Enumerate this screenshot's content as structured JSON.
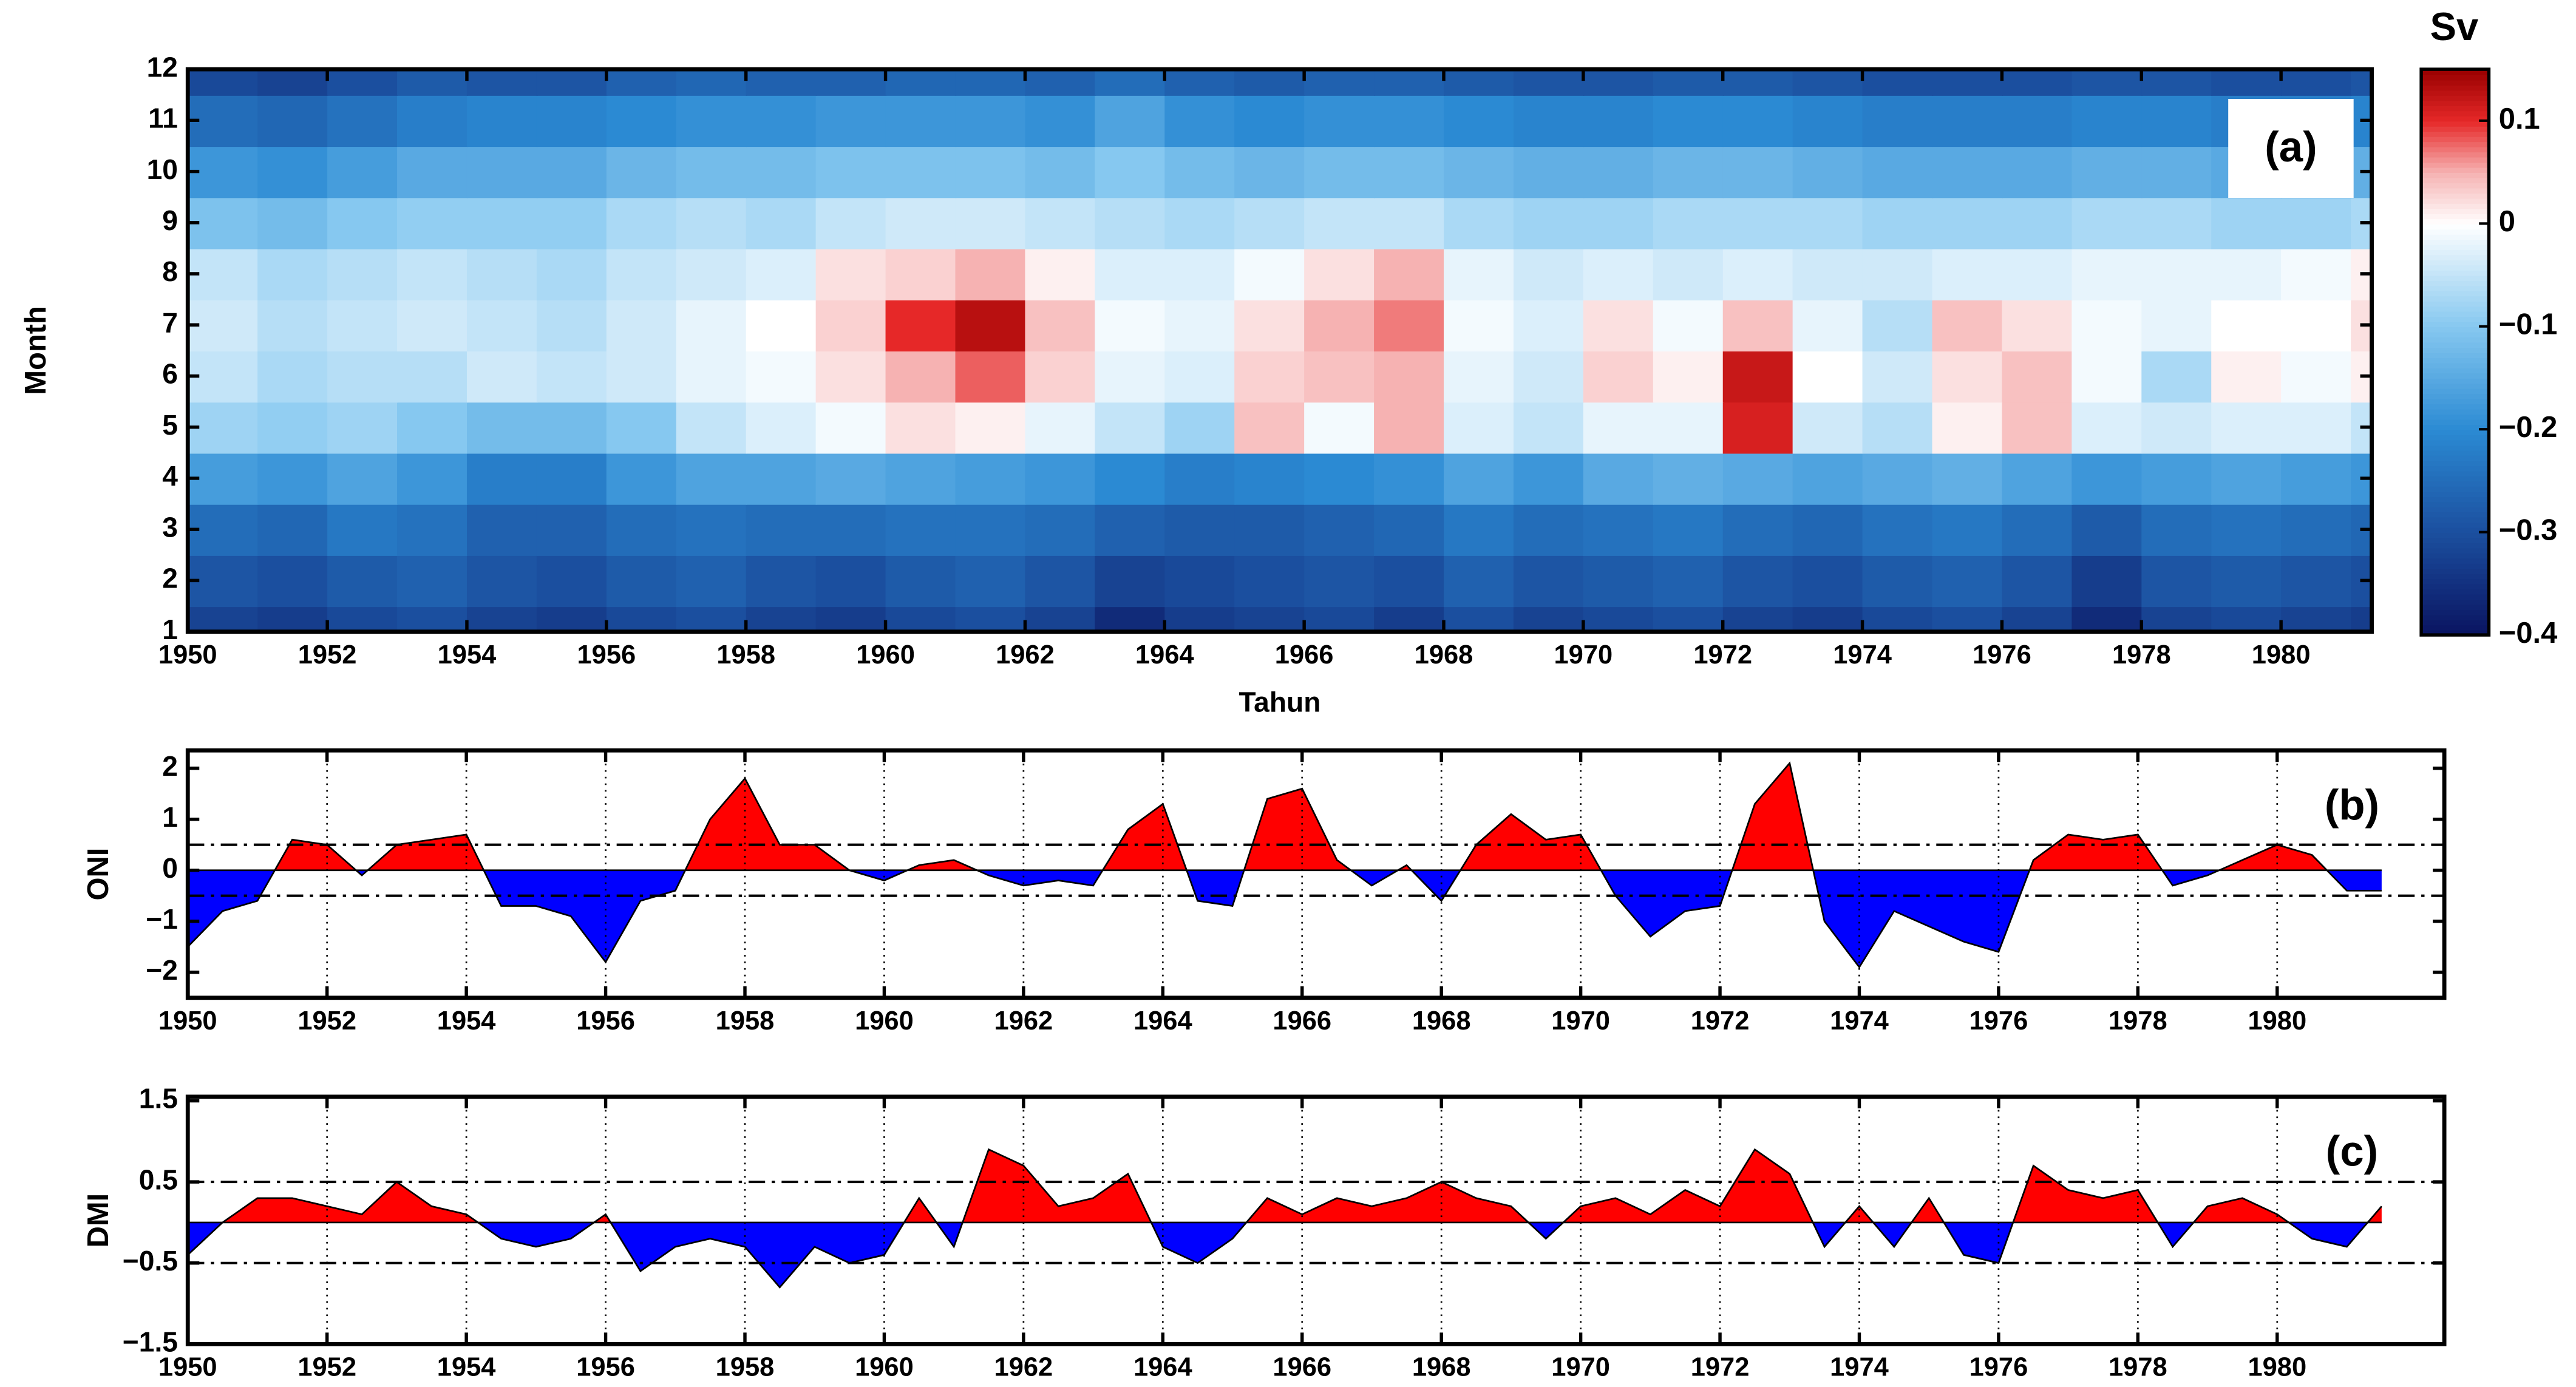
{
  "chart_data": [
    {
      "type": "heatmap",
      "xlabel": "Tahun",
      "ylabel": "Month",
      "annotation": "(a)",
      "x": [
        1950,
        1951,
        1952,
        1953,
        1954,
        1955,
        1956,
        1957,
        1958,
        1959,
        1960,
        1961,
        1962,
        1963,
        1964,
        1965,
        1966,
        1967,
        1968,
        1969,
        1970,
        1971,
        1972,
        1973,
        1974,
        1975,
        1976,
        1977,
        1978,
        1979,
        1980,
        1981
      ],
      "y": [
        1,
        2,
        3,
        4,
        5,
        6,
        7,
        8,
        9,
        10,
        11,
        12
      ],
      "z": [
        [
          -0.32,
          -0.33,
          -0.31,
          -0.3,
          -0.32,
          -0.33,
          -0.31,
          -0.3,
          -0.32,
          -0.33,
          -0.31,
          -0.3,
          -0.32,
          -0.36,
          -0.33,
          -0.32,
          -0.31,
          -0.33,
          -0.3,
          -0.32,
          -0.31,
          -0.3,
          -0.32,
          -0.33,
          -0.31,
          -0.3,
          -0.32,
          -0.36,
          -0.32,
          -0.31,
          -0.32,
          -0.33
        ],
        [
          -0.29,
          -0.3,
          -0.28,
          -0.27,
          -0.29,
          -0.3,
          -0.28,
          -0.27,
          -0.29,
          -0.3,
          -0.28,
          -0.27,
          -0.29,
          -0.32,
          -0.31,
          -0.3,
          -0.29,
          -0.3,
          -0.27,
          -0.29,
          -0.28,
          -0.27,
          -0.29,
          -0.3,
          -0.28,
          -0.27,
          -0.29,
          -0.33,
          -0.29,
          -0.28,
          -0.29,
          -0.3
        ],
        [
          -0.25,
          -0.26,
          -0.23,
          -0.24,
          -0.27,
          -0.27,
          -0.25,
          -0.24,
          -0.25,
          -0.25,
          -0.24,
          -0.24,
          -0.25,
          -0.27,
          -0.28,
          -0.28,
          -0.27,
          -0.26,
          -0.23,
          -0.25,
          -0.24,
          -0.23,
          -0.25,
          -0.26,
          -0.24,
          -0.23,
          -0.25,
          -0.28,
          -0.25,
          -0.24,
          -0.25,
          -0.26
        ],
        [
          -0.17,
          -0.18,
          -0.16,
          -0.18,
          -0.22,
          -0.22,
          -0.18,
          -0.16,
          -0.16,
          -0.15,
          -0.16,
          -0.17,
          -0.18,
          -0.2,
          -0.22,
          -0.21,
          -0.2,
          -0.19,
          -0.16,
          -0.18,
          -0.15,
          -0.14,
          -0.15,
          -0.16,
          -0.15,
          -0.14,
          -0.16,
          -0.18,
          -0.17,
          -0.16,
          -0.17,
          -0.18
        ],
        [
          -0.08,
          -0.09,
          -0.08,
          -0.1,
          -0.12,
          -0.12,
          -0.1,
          -0.05,
          -0.03,
          -0.01,
          0.02,
          0.01,
          -0.02,
          -0.05,
          -0.08,
          0.04,
          -0.01,
          0.05,
          -0.03,
          -0.05,
          -0.02,
          -0.02,
          0.11,
          -0.04,
          -0.06,
          0.01,
          0.04,
          -0.03,
          -0.04,
          -0.03,
          -0.03,
          -0.05
        ],
        [
          -0.05,
          -0.07,
          -0.06,
          -0.06,
          -0.04,
          -0.05,
          -0.04,
          -0.02,
          -0.01,
          0.02,
          0.05,
          0.08,
          0.03,
          -0.02,
          -0.03,
          0.03,
          0.04,
          0.05,
          -0.02,
          -0.04,
          0.03,
          0.01,
          0.12,
          0.0,
          -0.04,
          0.02,
          0.04,
          -0.01,
          -0.07,
          0.01,
          -0.01,
          0.01
        ],
        [
          -0.04,
          -0.06,
          -0.05,
          -0.04,
          -0.05,
          -0.06,
          -0.04,
          -0.02,
          0.0,
          0.03,
          0.1,
          0.13,
          0.04,
          -0.01,
          -0.02,
          0.02,
          0.05,
          0.07,
          -0.01,
          -0.03,
          0.02,
          -0.01,
          0.04,
          -0.02,
          -0.06,
          0.04,
          0.02,
          -0.01,
          -0.02,
          0.0,
          0.0,
          0.02
        ],
        [
          -0.05,
          -0.07,
          -0.06,
          -0.05,
          -0.06,
          -0.07,
          -0.05,
          -0.04,
          -0.03,
          0.02,
          0.03,
          0.05,
          0.01,
          -0.03,
          -0.03,
          -0.01,
          0.02,
          0.05,
          -0.02,
          -0.04,
          -0.03,
          -0.04,
          -0.03,
          -0.04,
          -0.04,
          -0.03,
          -0.03,
          -0.02,
          -0.02,
          -0.02,
          -0.01,
          0.01
        ],
        [
          -0.11,
          -0.12,
          -0.1,
          -0.09,
          -0.09,
          -0.09,
          -0.07,
          -0.06,
          -0.07,
          -0.05,
          -0.04,
          -0.04,
          -0.05,
          -0.06,
          -0.07,
          -0.06,
          -0.05,
          -0.05,
          -0.07,
          -0.08,
          -0.08,
          -0.07,
          -0.07,
          -0.07,
          -0.08,
          -0.08,
          -0.08,
          -0.07,
          -0.07,
          -0.08,
          -0.08,
          -0.07
        ],
        [
          -0.18,
          -0.19,
          -0.17,
          -0.15,
          -0.15,
          -0.15,
          -0.13,
          -0.12,
          -0.12,
          -0.11,
          -0.11,
          -0.11,
          -0.12,
          -0.1,
          -0.12,
          -0.13,
          -0.12,
          -0.12,
          -0.13,
          -0.14,
          -0.14,
          -0.13,
          -0.13,
          -0.14,
          -0.15,
          -0.15,
          -0.15,
          -0.14,
          -0.14,
          -0.15,
          -0.15,
          -0.14
        ],
        [
          -0.25,
          -0.26,
          -0.24,
          -0.22,
          -0.21,
          -0.21,
          -0.2,
          -0.19,
          -0.19,
          -0.18,
          -0.18,
          -0.18,
          -0.19,
          -0.16,
          -0.19,
          -0.2,
          -0.19,
          -0.19,
          -0.2,
          -0.21,
          -0.21,
          -0.2,
          -0.2,
          -0.21,
          -0.22,
          -0.22,
          -0.22,
          -0.21,
          -0.21,
          -0.22,
          -0.22,
          -0.21
        ],
        [
          -0.31,
          -0.32,
          -0.3,
          -0.28,
          -0.29,
          -0.29,
          -0.27,
          -0.26,
          -0.27,
          -0.27,
          -0.26,
          -0.26,
          -0.27,
          -0.25,
          -0.27,
          -0.28,
          -0.27,
          -0.27,
          -0.28,
          -0.29,
          -0.29,
          -0.28,
          -0.28,
          -0.29,
          -0.3,
          -0.3,
          -0.3,
          -0.29,
          -0.29,
          -0.3,
          -0.3,
          -0.29
        ]
      ],
      "xlim": [
        1950,
        1981.3
      ],
      "xticks": [
        1950,
        1952,
        1954,
        1956,
        1958,
        1960,
        1962,
        1964,
        1966,
        1968,
        1970,
        1972,
        1974,
        1976,
        1978,
        1980
      ],
      "ylim": [
        1,
        12
      ],
      "yticks": [
        1,
        2,
        3,
        4,
        5,
        6,
        7,
        8,
        9,
        10,
        11,
        12
      ],
      "grid": false,
      "colorbar_title": "Sv",
      "clim": [
        -0.4,
        0.15
      ],
      "cticks": [
        0.1,
        0,
        {
          "value": -0.1,
          "label": "−0.1"
        },
        {
          "value": -0.2,
          "label": "−0.2"
        },
        {
          "value": -0.3,
          "label": "−0.3"
        },
        {
          "value": -0.4,
          "label": "−0.4"
        }
      ],
      "colorscale": [
        [
          -0.4,
          "#0a1360"
        ],
        [
          -0.3,
          "#1b4f9f"
        ],
        [
          -0.2,
          "#2b8ad3"
        ],
        [
          -0.1,
          "#86c8f0"
        ],
        [
          0,
          "#ffffff"
        ],
        [
          0.05,
          "#f6b2b2"
        ],
        [
          0.1,
          "#e62828"
        ],
        [
          0.15,
          "#990000"
        ]
      ]
    },
    {
      "type": "area",
      "ylabel": "ONI",
      "annotation": "(b)",
      "pos_color": "#ff0000",
      "neg_color": "#0000ff",
      "x": [
        1950,
        1950.5,
        1951,
        1951.5,
        1952,
        1952.5,
        1953,
        1953.5,
        1954,
        1954.5,
        1955,
        1955.5,
        1956,
        1956.5,
        1957,
        1957.5,
        1958,
        1958.5,
        1959,
        1959.5,
        1960,
        1960.5,
        1961,
        1961.5,
        1962,
        1962.5,
        1963,
        1963.5,
        1964,
        1964.5,
        1965,
        1965.5,
        1966,
        1966.5,
        1967,
        1967.5,
        1968,
        1968.5,
        1969,
        1969.5,
        1970,
        1970.5,
        1971,
        1971.5,
        1972,
        1972.5,
        1973,
        1973.5,
        1974,
        1974.5,
        1975,
        1975.5,
        1976,
        1976.5,
        1977,
        1977.5,
        1978,
        1978.5,
        1979,
        1979.5,
        1980,
        1980.5,
        1981,
        1981.5
      ],
      "values": [
        -1.5,
        -0.8,
        -0.6,
        0.6,
        0.5,
        -0.1,
        0.5,
        0.6,
        0.7,
        -0.7,
        -0.7,
        -0.9,
        -1.8,
        -0.6,
        -0.4,
        1.0,
        1.8,
        0.5,
        0.5,
        0.0,
        -0.2,
        0.1,
        0.2,
        -0.1,
        -0.3,
        -0.2,
        -0.3,
        0.8,
        1.3,
        -0.6,
        -0.7,
        1.4,
        1.6,
        0.2,
        -0.3,
        0.1,
        -0.6,
        0.5,
        1.1,
        0.6,
        0.7,
        -0.5,
        -1.3,
        -0.8,
        -0.7,
        1.3,
        2.1,
        -1.0,
        -1.9,
        -0.8,
        -1.1,
        -1.4,
        -1.6,
        0.2,
        0.7,
        0.6,
        0.7,
        -0.3,
        -0.1,
        0.2,
        0.5,
        0.3,
        -0.4,
        -0.4
      ],
      "hlines": [
        0.5,
        -0.5
      ],
      "xlim": [
        1950,
        1982.4
      ],
      "xticks": [
        1950,
        1952,
        1954,
        1956,
        1958,
        1960,
        1962,
        1964,
        1966,
        1968,
        1970,
        1972,
        1974,
        1976,
        1978,
        1980
      ],
      "ylim": [
        -2.5,
        2.35
      ],
      "yticks": [
        {
          "value": -2,
          "label": "−2"
        },
        {
          "value": -1,
          "label": "−1"
        },
        0,
        1,
        2
      ],
      "grid": true
    },
    {
      "type": "area",
      "ylabel": "DMI",
      "annotation": "(c)",
      "pos_color": "#ff0000",
      "neg_color": "#0000ff",
      "x": [
        1950,
        1950.5,
        1951,
        1951.5,
        1952,
        1952.5,
        1953,
        1953.5,
        1954,
        1954.5,
        1955,
        1955.5,
        1956,
        1956.5,
        1957,
        1957.5,
        1958,
        1958.5,
        1959,
        1959.5,
        1960,
        1960.5,
        1961,
        1961.5,
        1962,
        1962.5,
        1963,
        1963.5,
        1964,
        1964.5,
        1965,
        1965.5,
        1966,
        1966.5,
        1967,
        1967.5,
        1968,
        1968.5,
        1969,
        1969.5,
        1970,
        1970.5,
        1971,
        1971.5,
        1972,
        1972.5,
        1973,
        1973.5,
        1974,
        1974.5,
        1975,
        1975.5,
        1976,
        1976.5,
        1977,
        1977.5,
        1978,
        1978.5,
        1979,
        1979.5,
        1980,
        1980.5,
        1981,
        1981.5
      ],
      "values": [
        -0.4,
        0.0,
        0.3,
        0.3,
        0.2,
        0.1,
        0.5,
        0.2,
        0.1,
        -0.2,
        -0.3,
        -0.2,
        0.1,
        -0.6,
        -0.3,
        -0.2,
        -0.3,
        -0.8,
        -0.3,
        -0.5,
        -0.4,
        0.3,
        -0.3,
        0.9,
        0.7,
        0.2,
        0.3,
        0.6,
        -0.3,
        -0.5,
        -0.2,
        0.3,
        0.1,
        0.3,
        0.2,
        0.3,
        0.5,
        0.3,
        0.2,
        -0.2,
        0.2,
        0.3,
        0.1,
        0.4,
        0.2,
        0.9,
        0.6,
        -0.3,
        0.2,
        -0.3,
        0.3,
        -0.4,
        -0.5,
        0.7,
        0.4,
        0.3,
        0.4,
        -0.3,
        0.2,
        0.3,
        0.1,
        -0.2,
        -0.3,
        0.2
      ],
      "hlines": [
        0.5,
        -0.5
      ],
      "xlim": [
        1950,
        1982.4
      ],
      "xticks": [
        1950,
        1952,
        1954,
        1956,
        1958,
        1960,
        1962,
        1964,
        1966,
        1968,
        1970,
        1972,
        1974,
        1976,
        1978,
        1980
      ],
      "ylim": [
        -1.5,
        1.55
      ],
      "yticks": [
        {
          "value": -1.5,
          "label": "−1.5"
        },
        {
          "value": -0.5,
          "label": "−0.5"
        },
        0.5,
        1.5
      ],
      "grid": true
    }
  ]
}
